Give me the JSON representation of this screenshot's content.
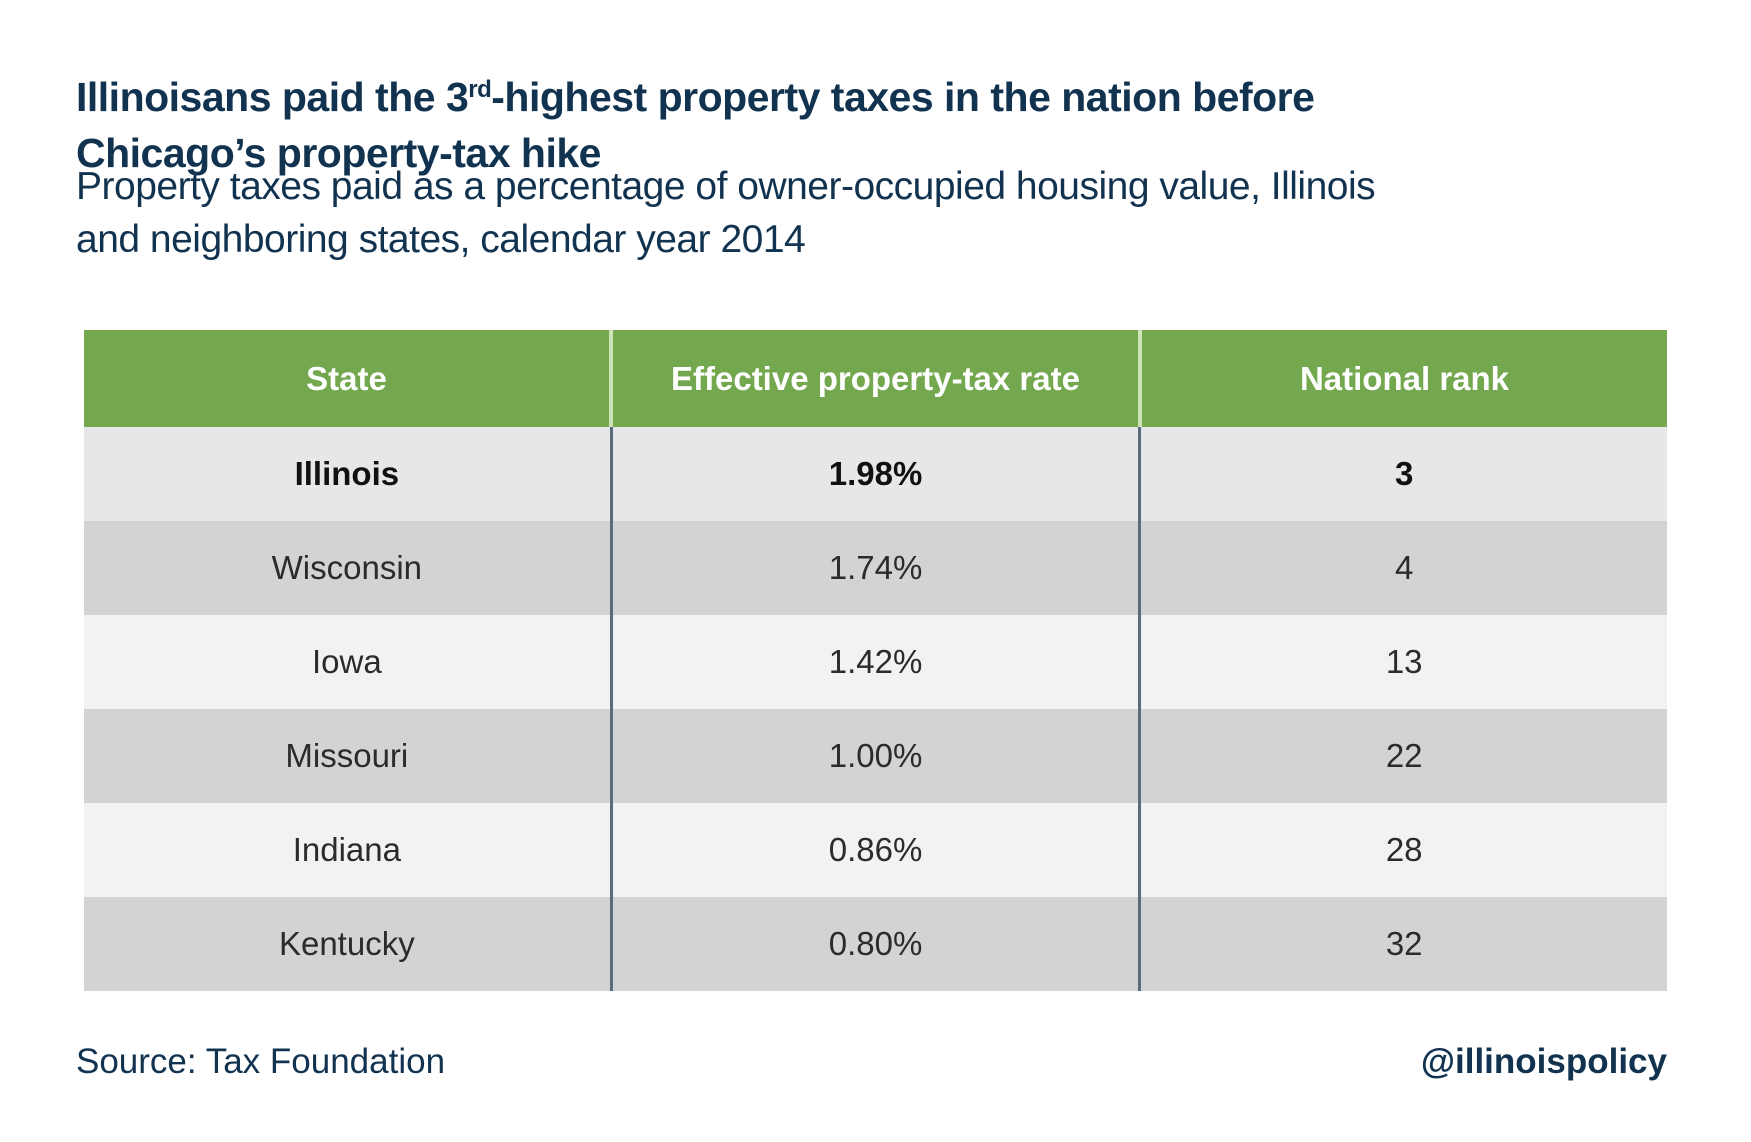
{
  "title": {
    "line1_pre": "Illinoisans paid the 3",
    "line1_sup": "rd",
    "line1_post": "-highest property taxes in the nation before",
    "line2": "Chicago’s property-tax hike"
  },
  "subtitle": {
    "line1": "Property taxes paid as a percentage of owner-occupied housing value, Illinois",
    "line2": "and neighboring states, calendar year 2014"
  },
  "table": {
    "columns": [
      "State",
      "Effective property-tax rate",
      "National rank"
    ],
    "rows": [
      {
        "state": "Illinois",
        "rate": "1.98%",
        "rank": "3",
        "highlight": true
      },
      {
        "state": "Wisconsin",
        "rate": "1.74%",
        "rank": "4",
        "highlight": false
      },
      {
        "state": "Iowa",
        "rate": "1.42%",
        "rank": "13",
        "highlight": false
      },
      {
        "state": "Missouri",
        "rate": "1.00%",
        "rank": "22",
        "highlight": false
      },
      {
        "state": "Indiana",
        "rate": "0.86%",
        "rank": "28",
        "highlight": false
      },
      {
        "state": "Kentucky",
        "rate": "0.80%",
        "rank": "32",
        "highlight": false
      }
    ]
  },
  "footer": {
    "source": "Source: Tax Foundation",
    "handle": "@illinoispolicy"
  },
  "colors": {
    "navy": "#123350",
    "header_green": "#74a84f",
    "header_divider": "#cfe2b8",
    "body_divider": "#5b6c7d",
    "row_highlight": "#e6e7e8",
    "row_dark": "#d1d3d4",
    "row_light": "#f1f2f2"
  },
  "chart_data": {
    "type": "table",
    "title": "Illinoisans paid the 3rd-highest property taxes in the nation before Chicago’s property-tax hike",
    "subtitle": "Property taxes paid as a percentage of owner-occupied housing value, Illinois and neighboring states, calendar year 2014",
    "columns": [
      "State",
      "Effective property-tax rate",
      "National rank"
    ],
    "rows": [
      [
        "Illinois",
        "1.98%",
        3
      ],
      [
        "Wisconsin",
        "1.74%",
        4
      ],
      [
        "Iowa",
        "1.42%",
        13
      ],
      [
        "Missouri",
        "1.00%",
        22
      ],
      [
        "Indiana",
        "0.86%",
        28
      ],
      [
        "Kentucky",
        "0.80%",
        32
      ]
    ],
    "highlighted_row": "Illinois",
    "source": "Tax Foundation"
  }
}
